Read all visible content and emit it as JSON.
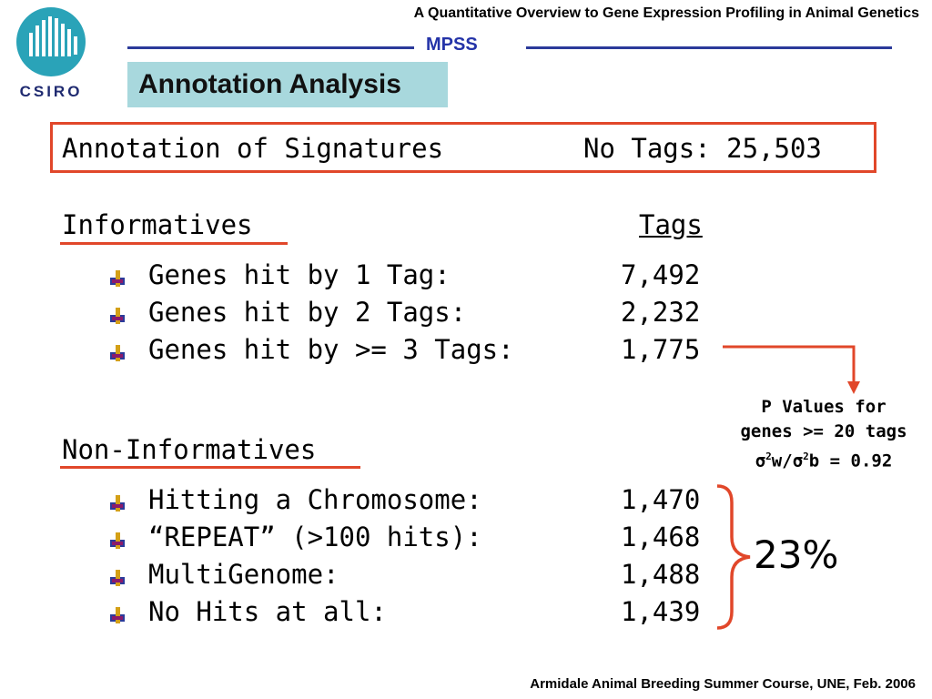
{
  "header": {
    "presentation_title": "A Quantitative Overview to Gene Expression Profiling in Animal Genetics",
    "section_label": "MPSS"
  },
  "logo": {
    "text": "CSIRO",
    "colors": {
      "circle": "#2aa3b8",
      "text": "#1f2a70"
    }
  },
  "slide": {
    "title": "Annotation Analysis",
    "signatures": {
      "label": "Annotation of Signatures",
      "count": "No Tags: 25,503"
    },
    "informatives": {
      "heading": "Informatives",
      "column_heading": "Tags",
      "items": [
        {
          "label": "Genes hit by 1 Tag:",
          "value": "7,492"
        },
        {
          "label": "Genes hit by 2 Tags:",
          "value": "2,232"
        },
        {
          "label": "Genes hit by >= 3 Tags:",
          "value": "1,775"
        }
      ]
    },
    "pvalue_note": {
      "line1": "P Values for",
      "line2": "genes >= 20 tags",
      "sigma": "σ",
      "sup": "2",
      "w": "w/",
      "b": "b = 0.92"
    },
    "non_informatives": {
      "heading": "Non-Informatives",
      "items": [
        {
          "label": "Hitting a Chromosome:",
          "value": "1,470"
        },
        {
          "label": "“REPEAT” (>100 hits):",
          "value": "1,468"
        },
        {
          "label": "MultiGenome:",
          "value": "1,488"
        },
        {
          "label": "No Hits at all:",
          "value": "1,439"
        }
      ],
      "percentage": "23%"
    }
  },
  "footer": {
    "text": "Armidale Animal Breeding Summer Course, UNE, Feb. 2006"
  },
  "colors": {
    "accent_red": "#e1472a",
    "rule_blue": "#2b3a9a",
    "title_box": "#a8d8dd"
  }
}
